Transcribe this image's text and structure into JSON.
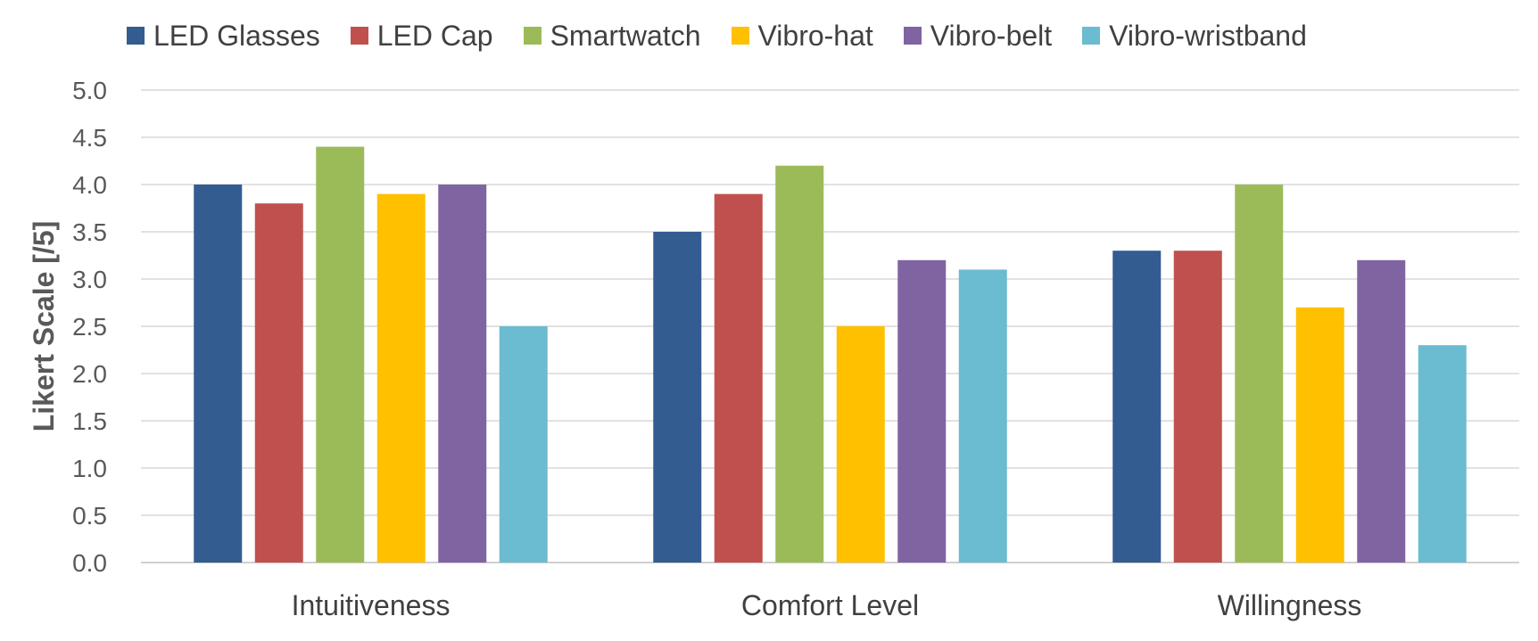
{
  "chart_data": {
    "type": "bar",
    "title": "",
    "xlabel": "",
    "ylabel": "Likert Scale [/5]",
    "ylim": [
      0,
      5
    ],
    "yticks": [
      0,
      0.5,
      1,
      1.5,
      2,
      2.5,
      3,
      3.5,
      4,
      4.5,
      5
    ],
    "ytick_labels": [
      "0.0",
      "0.5",
      "1.0",
      "1.5",
      "2.0",
      "2.5",
      "3.0",
      "3.5",
      "4.0",
      "4.5",
      "5.0"
    ],
    "grid": true,
    "legend_position": "top",
    "categories": [
      "Intuitiveness",
      "Comfort Level",
      "Willingness"
    ],
    "series": [
      {
        "name": "LED Glasses",
        "color": "#335C91",
        "values": [
          4.0,
          3.5,
          3.3
        ]
      },
      {
        "name": "LED Cap",
        "color": "#C0504D",
        "values": [
          3.8,
          3.9,
          3.3
        ]
      },
      {
        "name": "Smartwatch",
        "color": "#9BBB59",
        "values": [
          4.4,
          4.2,
          4.0
        ]
      },
      {
        "name": "Vibro-hat",
        "color": "#FFC000",
        "values": [
          3.9,
          2.5,
          2.7
        ]
      },
      {
        "name": "Vibro-belt",
        "color": "#8064A2",
        "values": [
          4.0,
          3.2,
          3.2
        ]
      },
      {
        "name": "Vibro-wristband",
        "color": "#6BBBD1",
        "values": [
          2.5,
          3.1,
          2.3
        ]
      }
    ]
  }
}
